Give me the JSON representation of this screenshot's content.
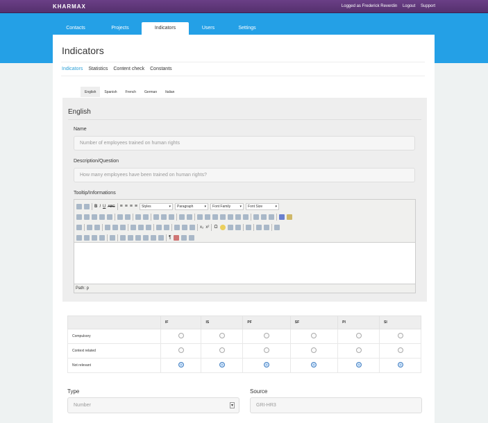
{
  "app": {
    "logo": "KHARMAX",
    "logged_as": "Logged as Frederick Reverdin",
    "logout": "Logout",
    "support": "Support"
  },
  "tabs": [
    "Contacts",
    "Projects",
    "Indicators",
    "Users",
    "Settings"
  ],
  "page_title": "Indicators",
  "subnav": [
    "Indicators",
    "Statistics",
    "Content check",
    "Constants"
  ],
  "languages": [
    "English",
    "Spanish",
    "French",
    "German",
    "Italian"
  ],
  "form": {
    "section_title": "English",
    "name_label": "Name",
    "name_placeholder": "Number of employees trained on human rights",
    "desc_label": "Description/Question",
    "desc_placeholder": "How many employees have been trained on human rights?",
    "tooltip_label": "Tooltip/Informations",
    "editor": {
      "styles": "Styles",
      "paragraph": "Paragraph",
      "font_family": "Font Family",
      "font_size": "Font Size",
      "path": "Path: p"
    }
  },
  "matrix": {
    "columns": [
      "IF",
      "IS",
      "PF",
      "SF",
      "PI",
      "SI"
    ],
    "rows": [
      {
        "label": "Compulsory",
        "selected": false
      },
      {
        "label": "Context related",
        "selected": false
      },
      {
        "label": "Not relevant",
        "selected": true
      }
    ]
  },
  "type": {
    "label": "Type",
    "value": "Number"
  },
  "source": {
    "label": "Source",
    "value": "GRI-HR3"
  },
  "colors": {
    "topbar": "#5f3779",
    "band": "#24a0e6",
    "accent": "#2a9fd6"
  }
}
